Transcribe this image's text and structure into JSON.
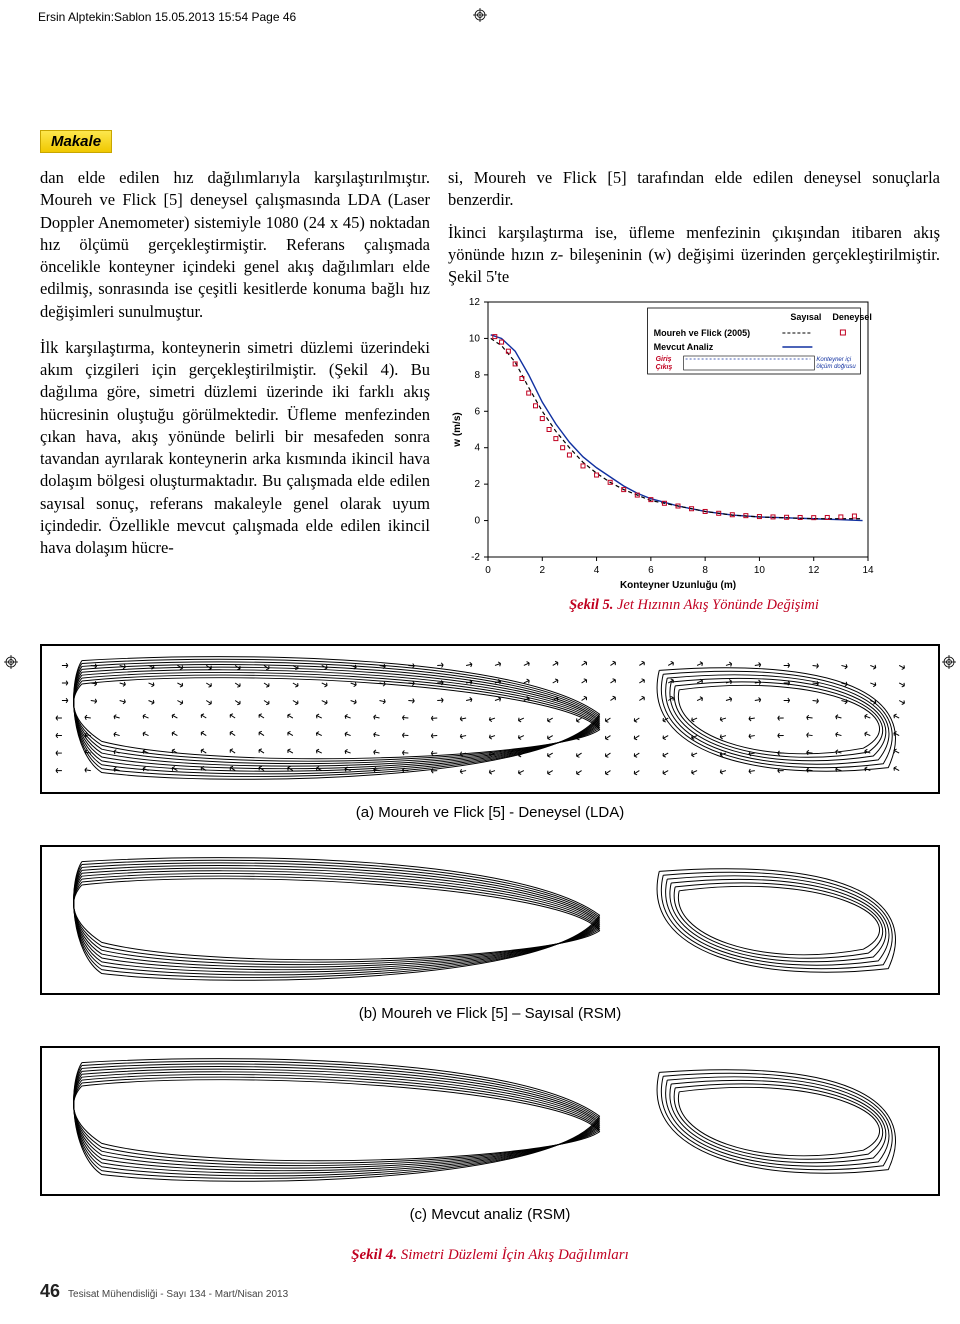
{
  "meta": {
    "header_line": "Ersin Alptekin:Sablon  15.05.2013  15:54  Page 46",
    "section_badge": "Makale",
    "page_number": "46",
    "footer_text": "Tesisat Mühendisliği - Sayı 134 - Mart/Nisan 2013"
  },
  "body": {
    "left_p1": "dan elde edilen hız dağılımlarıyla karşılaştırılmıştır. Moureh ve Flick [5] deneysel çalışmasında LDA (Laser Doppler Anemometer) sistemiyle 1080 (24 x 45) noktadan hız ölçümü gerçekleştirmiştir. Referans çalışmada öncelikle konteyner içindeki genel akış dağılımları elde edilmiş, sonrasında ise çeşitli kesitlerde konuma bağlı hız değişimleri sunulmuştur.",
    "left_p2": "İlk karşılaştırma, konteynerin simetri düzlemi üzerindeki akım çizgileri için gerçekleştirilmiştir. (Şekil 4). Bu dağılıma göre, simetri düzlemi üzerinde iki farklı akış hücresinin oluştuğu görülmektedir. Üfleme menfezinden çıkan hava, akış yönünde belirli bir mesafeden sonra tavandan ayrılarak konteynerin arka kısmında ikincil hava dolaşım bölgesi oluşturmaktadır. Bu çalışmada elde edilen sayısal sonuç, referans makaleyle genel olarak uyum içindedir. Özellikle mevcut çalışmada elde edilen ikincil hava dolaşım hücre-",
    "right_p1": "si, Moureh ve Flick [5] tarafından elde edilen deneysel sonuçlarla benzerdir.",
    "right_p2_prefix": "İkinci karşılaştırma ise, üfleme menfezinin çıkışından itibaren akış yönünde hızın z- bileşeninin (w) değişimi üzerinden gerçekleştirilmiştir. Şekil 5'te"
  },
  "chart": {
    "caption_label": "Şekil 5.",
    "caption_text": " Jet Hızının Akış Yönünde Değişimi",
    "xlabel": "Konteyner Uzunluğu (m)",
    "ylabel": "w (m/s)",
    "legend_col_num": "Sayısal",
    "legend_col_exp": "Deneysel",
    "legend_row1": "Moureh ve Flick (2005)",
    "legend_row2": "Mevcut Analiz",
    "inset_giris": "Giriş",
    "inset_cikis": "Çıkış",
    "inset_right": "Konteyner içi\nölçüm doğrusu",
    "xlim": [
      0,
      14
    ],
    "ylim": [
      -2,
      12
    ],
    "xticks": [
      0,
      2,
      4,
      6,
      8,
      10,
      12,
      14
    ],
    "yticks": [
      -2,
      0,
      2,
      4,
      6,
      8,
      10,
      12
    ],
    "series_solid": {
      "color": "#1030a0",
      "width": 1.4,
      "x": [
        0.1,
        0.5,
        1,
        1.5,
        2,
        2.5,
        3,
        3.5,
        4,
        4.5,
        5,
        5.5,
        6,
        6.5,
        7,
        8,
        9,
        10,
        11,
        12,
        13,
        13.8
      ],
      "y": [
        10.2,
        10.0,
        9.3,
        8.0,
        6.5,
        5.3,
        4.3,
        3.5,
        2.9,
        2.4,
        1.9,
        1.5,
        1.2,
        1.0,
        0.8,
        0.5,
        0.3,
        0.2,
        0.15,
        0.1,
        0.05,
        0.0
      ]
    },
    "series_dashed": {
      "color": "#000000",
      "dash": "4,3",
      "width": 1.2,
      "x": [
        0.1,
        0.5,
        1,
        1.5,
        2,
        2.5,
        3,
        3.5,
        4,
        4.5,
        5,
        5.5,
        6,
        7,
        8,
        9,
        10,
        11,
        12,
        13,
        13.8
      ],
      "y": [
        10.0,
        9.6,
        8.7,
        7.3,
        6.0,
        4.9,
        4.0,
        3.2,
        2.6,
        2.1,
        1.7,
        1.4,
        1.1,
        0.8,
        0.5,
        0.3,
        0.2,
        0.15,
        0.1,
        0.1,
        0.1
      ]
    },
    "series_markers": {
      "color": "#c00020",
      "size": 4,
      "x": [
        0.25,
        0.5,
        0.75,
        1.0,
        1.25,
        1.5,
        1.75,
        2.0,
        2.25,
        2.5,
        2.75,
        3.0,
        3.5,
        4.0,
        4.5,
        5.0,
        5.5,
        6.0,
        6.5,
        7.0,
        7.5,
        8.0,
        8.5,
        9.0,
        9.5,
        10.0,
        10.5,
        11.0,
        11.5,
        12.0,
        12.5,
        13.0,
        13.5
      ],
      "y": [
        10.1,
        9.8,
        9.3,
        8.6,
        7.8,
        7.0,
        6.3,
        5.6,
        5.0,
        4.5,
        4.0,
        3.6,
        3.0,
        2.5,
        2.1,
        1.7,
        1.4,
        1.15,
        0.95,
        0.8,
        0.65,
        0.5,
        0.4,
        0.32,
        0.27,
        0.22,
        0.2,
        0.18,
        0.17,
        0.16,
        0.17,
        0.2,
        0.25
      ]
    }
  },
  "figure4": {
    "panel_a": "(a) Moureh ve Flick [5] - Deneysel (LDA)",
    "panel_b": "(b) Moureh ve Flick [5] – Sayısal (RSM)",
    "panel_c": "(c) Mevcut analiz (RSM)",
    "caption_label": "Şekil 4.",
    "caption_text": " Simetri Düzlemi İçin Akış Dağılımları"
  }
}
